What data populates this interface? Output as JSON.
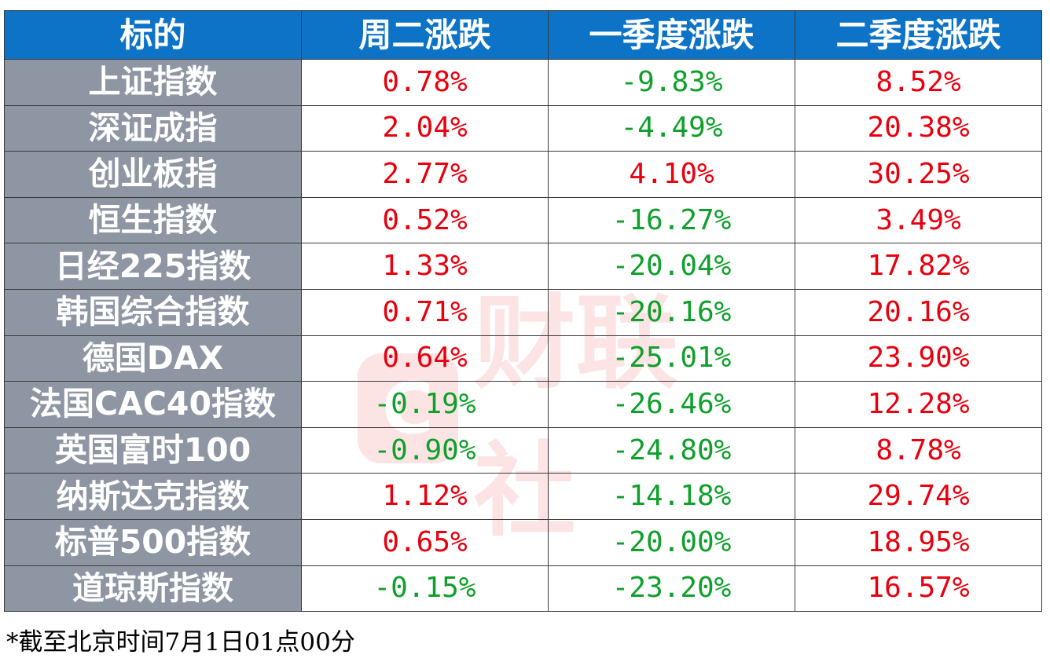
{
  "table": {
    "headers": [
      "标的",
      "周二涨跌",
      "一季度涨跌",
      "二季度涨跌"
    ],
    "rows": [
      {
        "name": "上证指数",
        "values": [
          "0.78%",
          "-9.83%",
          "8.52%"
        ],
        "dir": [
          "up",
          "down",
          "up"
        ]
      },
      {
        "name": "深证成指",
        "values": [
          "2.04%",
          "-4.49%",
          "20.38%"
        ],
        "dir": [
          "up",
          "down",
          "up"
        ]
      },
      {
        "name": "创业板指",
        "values": [
          "2.77%",
          "4.10%",
          "30.25%"
        ],
        "dir": [
          "up",
          "up",
          "up"
        ]
      },
      {
        "name": "恒生指数",
        "values": [
          "0.52%",
          "-16.27%",
          "3.49%"
        ],
        "dir": [
          "up",
          "down",
          "up"
        ]
      },
      {
        "name": "日经225指数",
        "values": [
          "1.33%",
          "-20.04%",
          "17.82%"
        ],
        "dir": [
          "up",
          "down",
          "up"
        ]
      },
      {
        "name": "韩国综合指数",
        "values": [
          "0.71%",
          "-20.16%",
          "20.16%"
        ],
        "dir": [
          "up",
          "down",
          "up"
        ]
      },
      {
        "name": "德国DAX",
        "values": [
          "0.64%",
          "-25.01%",
          "23.90%"
        ],
        "dir": [
          "up",
          "down",
          "up"
        ]
      },
      {
        "name": "法国CAC40指数",
        "values": [
          "-0.19%",
          "-26.46%",
          "12.28%"
        ],
        "dir": [
          "down",
          "down",
          "up"
        ]
      },
      {
        "name": "英国富时100",
        "values": [
          "-0.90%",
          "-24.80%",
          "8.78%"
        ],
        "dir": [
          "down",
          "down",
          "up"
        ]
      },
      {
        "name": "纳斯达克指数",
        "values": [
          "1.12%",
          "-14.18%",
          "29.74%"
        ],
        "dir": [
          "up",
          "down",
          "up"
        ]
      },
      {
        "name": "标普500指数",
        "values": [
          "0.65%",
          "-20.00%",
          "18.95%"
        ],
        "dir": [
          "up",
          "down",
          "up"
        ]
      },
      {
        "name": "道琼斯指数",
        "values": [
          "-0.15%",
          "-23.20%",
          "16.57%"
        ],
        "dir": [
          "down",
          "down",
          "up"
        ]
      }
    ]
  },
  "footnote": "*截至北京时间7月1日01点00分",
  "watermark": {
    "badge": "C",
    "text": "财联社"
  },
  "colors": {
    "header_bg": "#0d73c6",
    "name_bg": "#8f96a3",
    "up": "#e8000f",
    "down": "#0ea02a"
  }
}
